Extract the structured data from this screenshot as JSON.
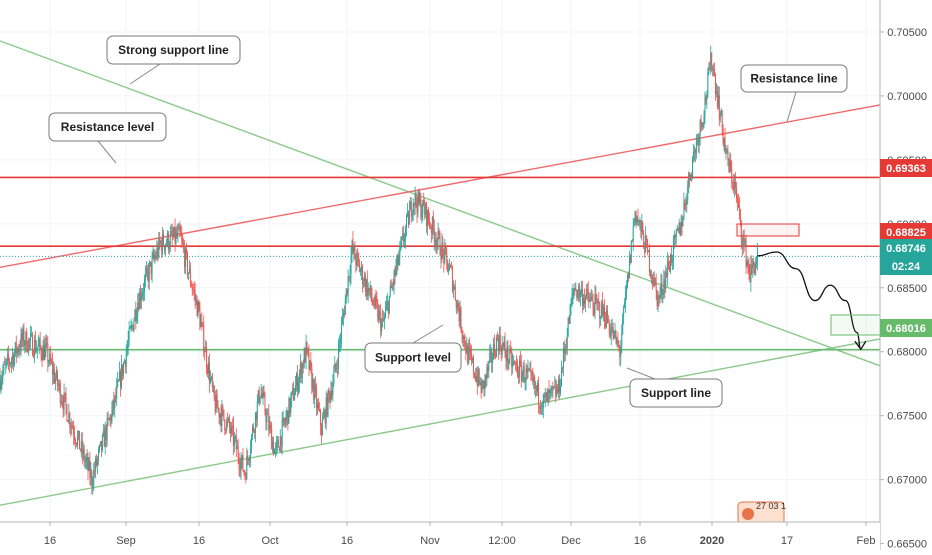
{
  "chart_data": {
    "type": "candlestick",
    "x_ticks": [
      "16",
      "Sep",
      "16",
      "Oct",
      "16",
      "Nov",
      "12:00",
      "Dec",
      "16",
      "2020",
      "17",
      "Feb"
    ],
    "y_ticks": [
      "0.70500",
      "0.70000",
      "0.69500",
      "0.69000",
      "0.68500",
      "0.68000",
      "0.67500",
      "0.67000",
      "0.66500"
    ],
    "ylim": [
      0.6645,
      0.7075
    ],
    "price_tags": [
      {
        "value": "0.69363",
        "color": "#e53935"
      },
      {
        "value": "0.68825",
        "color": "#e53935"
      },
      {
        "value": "0.68746",
        "color": "#26a69a"
      },
      {
        "value": "02:24",
        "color": "#26a69a"
      },
      {
        "value": "0.68016",
        "color": "#66bb6a"
      }
    ],
    "horizontal_levels": [
      {
        "value": 0.69363,
        "color": "#e53935"
      },
      {
        "value": 0.68825,
        "color": "#e53935"
      },
      {
        "value": 0.68016,
        "color": "#66bb6a"
      }
    ],
    "current_price": 0.68746,
    "annotations": [
      {
        "text": "Strong support line"
      },
      {
        "text": "Resistance level"
      },
      {
        "text": "Resistance line"
      },
      {
        "text": "Support level"
      },
      {
        "text": "Support line"
      }
    ],
    "price_path": [
      [
        0,
        0.678
      ],
      [
        6,
        0.681
      ],
      [
        12,
        0.68
      ],
      [
        18,
        0.675
      ],
      [
        24,
        0.67
      ],
      [
        30,
        0.676
      ],
      [
        36,
        0.684
      ],
      [
        42,
        0.6885
      ],
      [
        47,
        0.689
      ],
      [
        52,
        0.683
      ],
      [
        56,
        0.676
      ],
      [
        60,
        0.674
      ],
      [
        64,
        0.6705
      ],
      [
        68,
        0.677
      ],
      [
        72,
        0.672
      ],
      [
        76,
        0.676
      ],
      [
        80,
        0.68
      ],
      [
        84,
        0.674
      ],
      [
        88,
        0.679
      ],
      [
        92,
        0.688
      ],
      [
        96,
        0.685
      ],
      [
        100,
        0.682
      ],
      [
        104,
        0.687
      ],
      [
        108,
        0.692
      ],
      [
        111,
        0.691
      ],
      [
        114,
        0.689
      ],
      [
        118,
        0.686
      ],
      [
        122,
        0.68
      ],
      [
        126,
        0.677
      ],
      [
        130,
        0.681
      ],
      [
        134,
        0.679
      ],
      [
        138,
        0.678
      ],
      [
        142,
        0.676
      ],
      [
        146,
        0.677
      ],
      [
        150,
        0.685
      ],
      [
        154,
        0.684
      ],
      [
        158,
        0.683
      ],
      [
        162,
        0.68
      ],
      [
        166,
        0.691
      ],
      [
        169,
        0.688
      ],
      [
        172,
        0.684
      ],
      [
        175,
        0.687
      ],
      [
        178,
        0.69
      ],
      [
        181,
        0.695
      ],
      [
        184,
        0.699
      ],
      [
        186,
        0.703
      ],
      [
        188,
        0.699
      ],
      [
        190,
        0.695
      ],
      [
        192,
        0.693
      ],
      [
        194,
        0.689
      ],
      [
        196,
        0.686
      ],
      [
        198,
        0.6874
      ]
    ],
    "x_range": [
      0,
      230
    ],
    "trend_lines": [
      {
        "name": "Strong support line",
        "color": "#8bc98b",
        "p1": [
          0,
          0.7043
        ],
        "p2": [
          230,
          0.6789
        ]
      },
      {
        "name": "Resistance line",
        "color": "#ef6b6b",
        "p1": [
          0,
          0.6866
        ],
        "p2": [
          230,
          0.6993
        ]
      },
      {
        "name": "Support line",
        "color": "#8bc98b",
        "p1": [
          0,
          0.668
        ],
        "p2": [
          230,
          0.681
        ]
      }
    ],
    "forecast_path": [
      [
        198,
        0.6875
      ],
      [
        203,
        0.6878
      ],
      [
        208,
        0.6865
      ],
      [
        213,
        0.684
      ],
      [
        217,
        0.6852
      ],
      [
        221,
        0.684
      ],
      [
        224,
        0.6815
      ],
      [
        225,
        0.6802
      ]
    ],
    "currency_badge": "27 03 1"
  }
}
